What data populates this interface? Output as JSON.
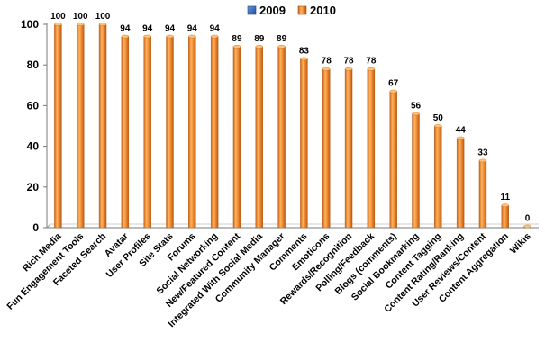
{
  "chart_data": {
    "type": "bar",
    "categories": [
      "Rich Media",
      "Fun Engagement Tools",
      "Faceted Search",
      "Avatar",
      "User Profiles",
      "Site Stats",
      "Forums",
      "Social Networking",
      "New/Featured Content",
      "Integrated With Social Media",
      "Community Manager",
      "Comments",
      "Emoticons",
      "Rewards/Recognition",
      "Polling/Feedback",
      "Blogs (comments)",
      "Social Bookmarking",
      "Content Tagging",
      "Content Rating/Ranking",
      "User Reviews/Content",
      "Content Aggregation",
      "Wikis"
    ],
    "series": [
      {
        "name": "2009",
        "values": [
          null,
          null,
          null,
          null,
          null,
          null,
          null,
          null,
          null,
          null,
          null,
          null,
          null,
          null,
          null,
          null,
          null,
          null,
          null,
          null,
          null,
          null
        ],
        "color": "#3a6fc4"
      },
      {
        "name": "2010",
        "values": [
          100,
          100,
          100,
          94,
          94,
          94,
          94,
          94,
          89,
          89,
          89,
          83,
          78,
          78,
          78,
          67,
          56,
          50,
          44,
          33,
          11,
          0
        ],
        "color": "#f0923a"
      }
    ],
    "ylim": [
      0,
      100
    ],
    "yticks": [
      "0",
      "20",
      "40",
      "60",
      "80",
      "100"
    ],
    "legend_position": "top",
    "grid": false
  }
}
